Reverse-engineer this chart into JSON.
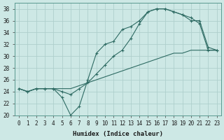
{
  "xlabel": "Humidex (Indice chaleur)",
  "xlim": [
    -0.5,
    23.5
  ],
  "ylim": [
    20,
    39
  ],
  "yticks": [
    20,
    22,
    24,
    26,
    28,
    30,
    32,
    34,
    36,
    38
  ],
  "xticks": [
    0,
    1,
    2,
    3,
    4,
    5,
    6,
    7,
    8,
    9,
    10,
    11,
    12,
    13,
    14,
    15,
    16,
    17,
    18,
    19,
    20,
    21,
    22,
    23
  ],
  "bg_color": "#cde8e5",
  "grid_color": "#aecfcc",
  "line_color": "#2e6b63",
  "line1_x": [
    0,
    1,
    2,
    3,
    4,
    5,
    6,
    7,
    8,
    9,
    10,
    11,
    12,
    13,
    14,
    15,
    16,
    17,
    18,
    19,
    20,
    21,
    22,
    23
  ],
  "line1_y": [
    24.5,
    24.0,
    24.5,
    24.5,
    24.5,
    23.0,
    20.0,
    21.5,
    26.0,
    30.5,
    32.0,
    32.5,
    34.5,
    35.0,
    36.0,
    37.5,
    38.0,
    38.0,
    37.5,
    37.0,
    36.5,
    35.5,
    31.0,
    31.0
  ],
  "line2_x": [
    0,
    1,
    2,
    3,
    4,
    5,
    6,
    7,
    8,
    9,
    10,
    11,
    12,
    13,
    14,
    15,
    16,
    17,
    18,
    19,
    20,
    21,
    22,
    23
  ],
  "line2_y": [
    24.5,
    24.0,
    24.5,
    24.5,
    24.5,
    24.0,
    23.5,
    24.5,
    25.5,
    27.0,
    28.5,
    30.0,
    31.0,
    33.0,
    35.5,
    37.5,
    38.0,
    38.0,
    37.5,
    37.0,
    36.0,
    36.0,
    31.5,
    31.0
  ],
  "line3_x": [
    0,
    1,
    2,
    3,
    4,
    5,
    6,
    7,
    8,
    9,
    10,
    11,
    12,
    13,
    14,
    15,
    16,
    17,
    18,
    19,
    20,
    21,
    22,
    23
  ],
  "line3_y": [
    24.5,
    24.0,
    24.5,
    24.5,
    24.5,
    24.5,
    24.5,
    25.0,
    25.5,
    26.0,
    26.5,
    27.0,
    27.5,
    28.0,
    28.5,
    29.0,
    29.5,
    30.0,
    30.5,
    30.5,
    31.0,
    31.0,
    31.0,
    31.0
  ]
}
